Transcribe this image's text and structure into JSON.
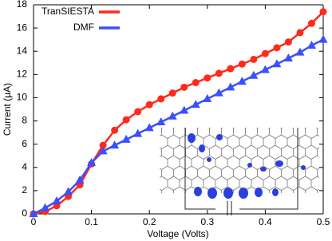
{
  "chart_data": {
    "type": "line",
    "x_label": "Voltage (Volts)",
    "y_label": "Current (μA)",
    "x": [
      0,
      0.02,
      0.04,
      0.06,
      0.08,
      0.1,
      0.12,
      0.14,
      0.16,
      0.18,
      0.2,
      0.22,
      0.24,
      0.26,
      0.28,
      0.3,
      0.32,
      0.34,
      0.36,
      0.38,
      0.4,
      0.42,
      0.44,
      0.46,
      0.48,
      0.5
    ],
    "series": [
      {
        "name": "TranSIESTA",
        "color": "#ff2a1a",
        "marker": "circle",
        "values": [
          0,
          0.2,
          0.7,
          1.5,
          2.5,
          4.3,
          5.9,
          7.2,
          8.1,
          8.8,
          9.4,
          9.9,
          10.4,
          10.9,
          11.3,
          11.7,
          12.1,
          12.5,
          12.9,
          13.3,
          13.8,
          14.3,
          14.8,
          15.6,
          16.4,
          17.4
        ]
      },
      {
        "name": "DMF",
        "color": "#3a4fff",
        "marker": "triangle",
        "values": [
          0,
          0.5,
          1.1,
          1.9,
          2.9,
          4.4,
          5.4,
          5.9,
          6.4,
          6.9,
          7.4,
          7.9,
          8.4,
          8.9,
          9.4,
          9.9,
          10.4,
          10.9,
          11.4,
          11.9,
          12.4,
          12.9,
          13.4,
          13.9,
          14.5,
          15.0
        ]
      }
    ],
    "xlim": [
      0,
      0.5
    ],
    "xticks": [
      0,
      0.1,
      0.2,
      0.3,
      0.4,
      0.5
    ],
    "ylim": [
      0,
      18
    ],
    "yticks": [
      0,
      2,
      4,
      6,
      8,
      10,
      12,
      14,
      16,
      18
    ],
    "grid": false,
    "legend": "upper left"
  }
}
